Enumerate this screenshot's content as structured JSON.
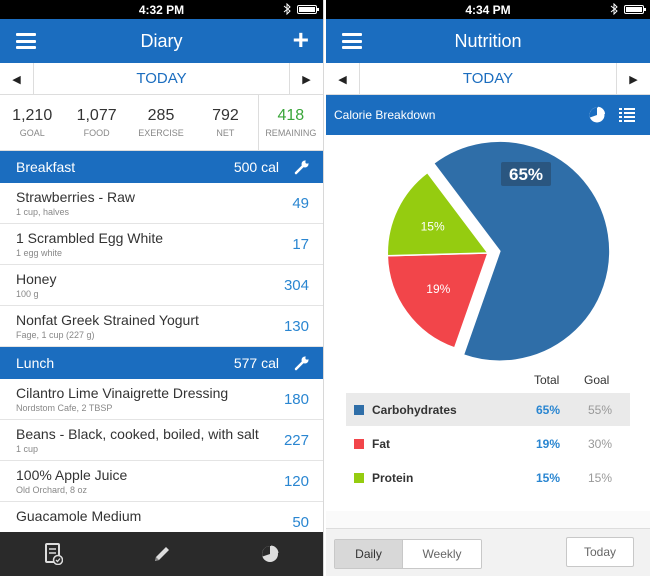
{
  "left": {
    "status_time": "4:32 PM",
    "title": "Diary",
    "date_label": "TODAY",
    "summary": [
      {
        "value": "1,210",
        "label": "GOAL"
      },
      {
        "value": "1,077",
        "label": "FOOD"
      },
      {
        "value": "285",
        "label": "EXERCISE"
      },
      {
        "value": "792",
        "label": "NET"
      },
      {
        "value": "418",
        "label": "REMAINING"
      }
    ],
    "breakfast": {
      "label": "Breakfast",
      "cal": "500 cal",
      "items": [
        {
          "name": "Strawberries - Raw",
          "sub": "1 cup, halves",
          "cal": "49"
        },
        {
          "name": "1 Scrambled Egg White",
          "sub": "1 egg white",
          "cal": "17"
        },
        {
          "name": "Honey",
          "sub": "100 g",
          "cal": "304"
        },
        {
          "name": "Nonfat Greek Strained Yogurt",
          "sub": "Fage, 1 cup (227 g)",
          "cal": "130"
        }
      ]
    },
    "lunch": {
      "label": "Lunch",
      "cal": "577 cal",
      "items": [
        {
          "name": "Cilantro Lime Vinaigrette Dressing",
          "sub": "Nordstom Cafe, 2 TBSP",
          "cal": "180"
        },
        {
          "name": "Beans - Black, cooked, boiled, with salt",
          "sub": "1 cup",
          "cal": "227"
        },
        {
          "name": "100% Apple Juice",
          "sub": "Old Orchard, 8 oz",
          "cal": "120"
        },
        {
          "name": "Guacamole Medium",
          "sub": "",
          "cal": "50"
        }
      ]
    },
    "tabs": [
      "diary-tab-icon",
      "pencil-icon",
      "pie-chart-icon"
    ]
  },
  "right": {
    "status_time": "4:34 PM",
    "title": "Nutrition",
    "date_label": "TODAY",
    "section_title": "Calorie Breakdown",
    "legend_headers": {
      "total": "Total",
      "goal": "Goal"
    },
    "rows": [
      {
        "name": "Carbohydrates",
        "total": "65%",
        "goal": "55%",
        "color": "#2f6ea8"
      },
      {
        "name": "Fat",
        "total": "19%",
        "goal": "30%",
        "color": "#f2454a"
      },
      {
        "name": "Protein",
        "total": "15%",
        "goal": "15%",
        "color": "#95cc10"
      }
    ],
    "segments": {
      "daily": "Daily",
      "weekly": "Weekly"
    },
    "today_button": "Today"
  },
  "chart_data": {
    "type": "pie",
    "categories": [
      "Carbohydrates",
      "Fat",
      "Protein"
    ],
    "values": [
      65,
      19,
      15
    ],
    "labels": [
      "65%",
      "19%",
      "15%"
    ],
    "colors": [
      "#2f6ea8",
      "#f2454a",
      "#95cc10"
    ],
    "exploded": "Carbohydrates"
  }
}
